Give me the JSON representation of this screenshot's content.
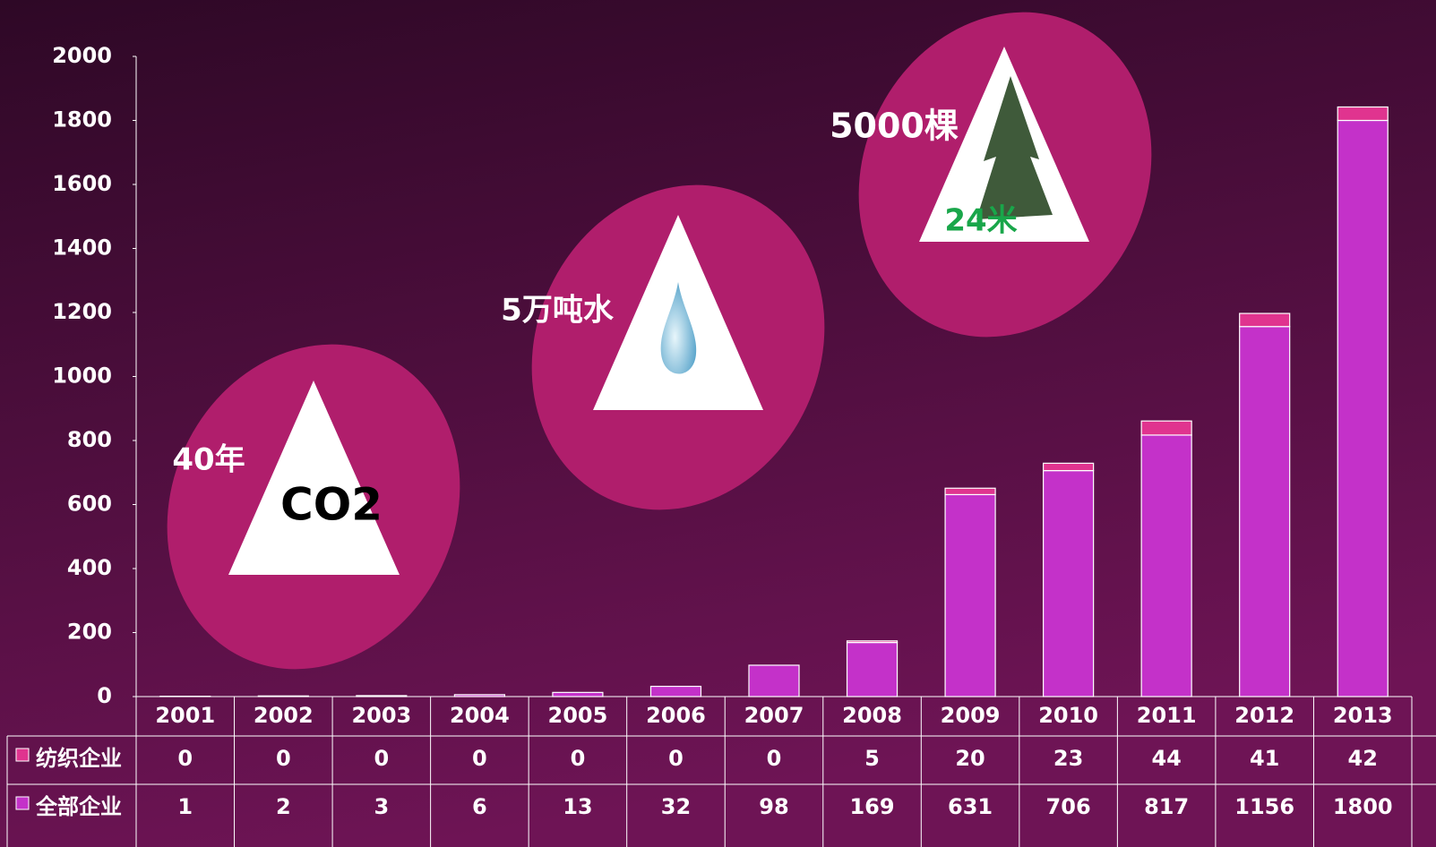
{
  "chart_data": {
    "type": "bar",
    "stacked": true,
    "categories": [
      "2001",
      "2002",
      "2003",
      "2004",
      "2005",
      "2006",
      "2007",
      "2008",
      "2009",
      "2010",
      "2011",
      "2012",
      "2013"
    ],
    "series": [
      {
        "name": "纺织企业",
        "color": "#e0348f",
        "values": [
          0,
          0,
          0,
          0,
          0,
          0,
          0,
          5,
          20,
          23,
          44,
          41,
          42
        ]
      },
      {
        "name": "全部企业",
        "color": "#c431c9",
        "values": [
          1,
          2,
          3,
          6,
          13,
          32,
          98,
          169,
          631,
          706,
          817,
          1156,
          1800
        ]
      }
    ],
    "ylim": [
      0,
      2000
    ],
    "yticks": [
      0,
      200,
      400,
      600,
      800,
      1000,
      1200,
      1400,
      1600,
      1800,
      2000
    ],
    "annotations": [
      "40年",
      "CO2",
      "5万吨水",
      "5000棵",
      "24米"
    ]
  }
}
